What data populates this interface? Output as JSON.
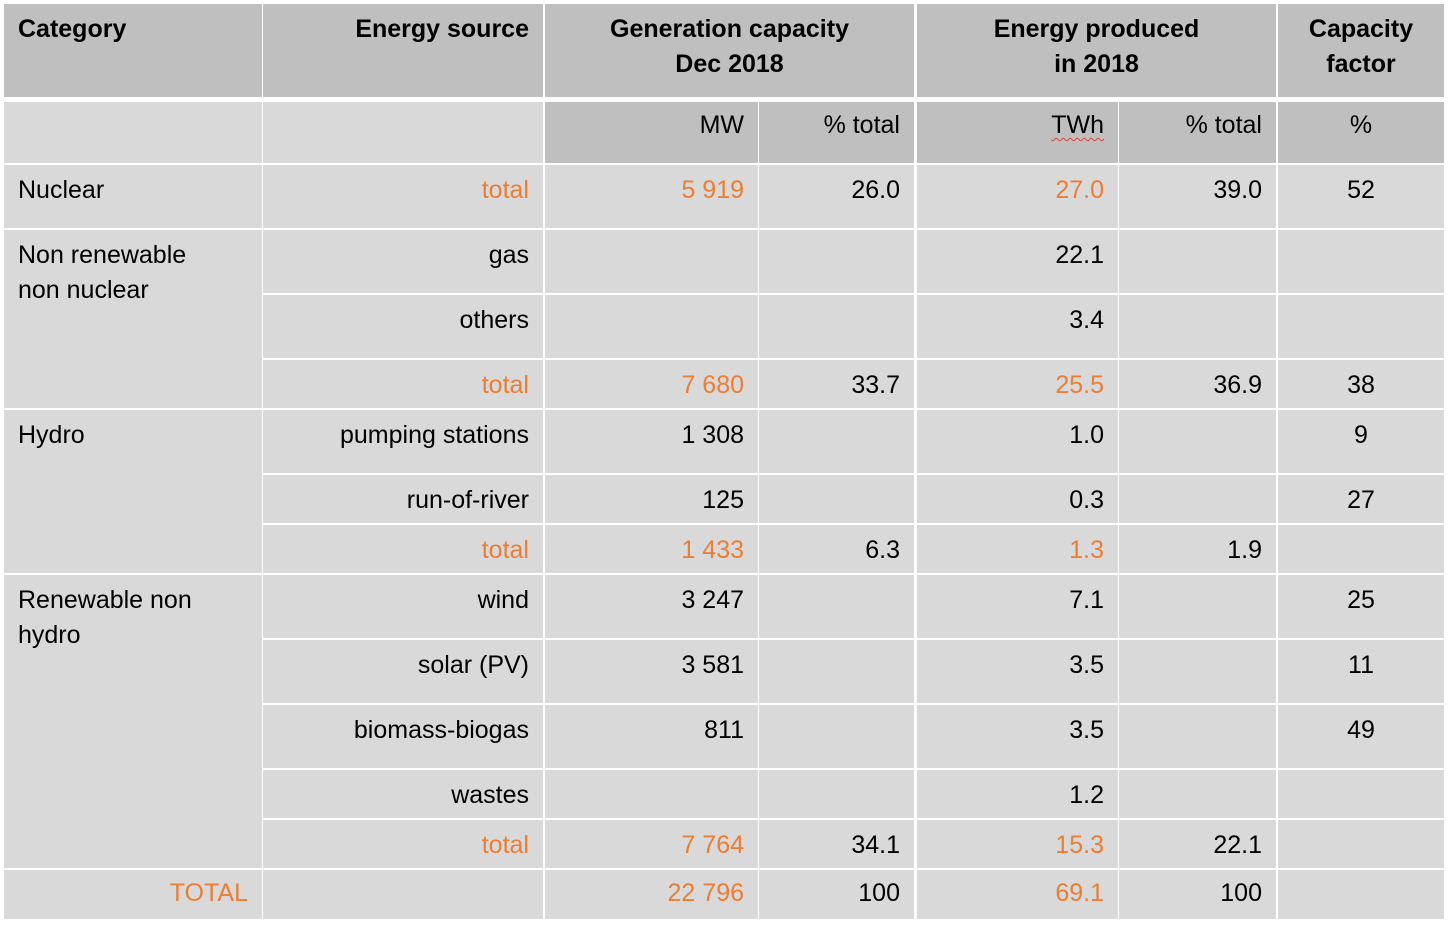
{
  "headers": {
    "category": "Category",
    "energy_source": "Energy source",
    "generation_capacity_line1": "Generation capacity",
    "generation_capacity_line2": "Dec 2018",
    "energy_produced_line1": "Energy produced",
    "energy_produced_line2": "in 2018",
    "capacity_factor_line1": "Capacity",
    "capacity_factor_line2": "factor"
  },
  "units": {
    "mw": "MW",
    "cap_pct": "% total",
    "twh": "TWh",
    "energy_pct": "% total",
    "cf_pct": "%"
  },
  "categories": {
    "nuclear": [
      "Nuclear"
    ],
    "non_renewable": [
      "Non renewable",
      "non nuclear"
    ],
    "hydro": [
      "Hydro"
    ],
    "renewable": [
      "Renewable  non",
      "hydro"
    ]
  },
  "rows": [
    {
      "source": "total",
      "mw": "5 919",
      "cap_pct": "26.0",
      "twh": "27.0",
      "energy_pct": "39.0",
      "cf": "52",
      "is_total": true
    },
    {
      "source": "gas",
      "mw": "",
      "cap_pct": "",
      "twh": "22.1",
      "energy_pct": "",
      "cf": "",
      "is_total": false
    },
    {
      "source": "others",
      "mw": "",
      "cap_pct": "",
      "twh": "3.4",
      "energy_pct": "",
      "cf": "",
      "is_total": false
    },
    {
      "source": "total",
      "mw": "7 680",
      "cap_pct": "33.7",
      "twh": "25.5",
      "energy_pct": "36.9",
      "cf": "38",
      "is_total": true
    },
    {
      "source": "pumping stations",
      "mw": "1 308",
      "cap_pct": "",
      "twh": "1.0",
      "energy_pct": "",
      "cf": "9",
      "is_total": false
    },
    {
      "source": "run-of-river",
      "mw": "125",
      "cap_pct": "",
      "twh": "0.3",
      "energy_pct": "",
      "cf": "27",
      "is_total": false
    },
    {
      "source": "total",
      "mw": "1 433",
      "cap_pct": "6.3",
      "twh": "1.3",
      "energy_pct": "1.9",
      "cf": "",
      "is_total": true
    },
    {
      "source": "wind",
      "mw": "3 247",
      "cap_pct": "",
      "twh": "7.1",
      "energy_pct": "",
      "cf": "25",
      "is_total": false
    },
    {
      "source": "solar (PV)",
      "mw": "3 581",
      "cap_pct": "",
      "twh": "3.5",
      "energy_pct": "",
      "cf": "11",
      "is_total": false
    },
    {
      "source": "biomass-biogas",
      "mw": "811",
      "cap_pct": "",
      "twh": "3.5",
      "energy_pct": "",
      "cf": "49",
      "is_total": false
    },
    {
      "source": "wastes",
      "mw": "",
      "cap_pct": "",
      "twh": "1.2",
      "energy_pct": "",
      "cf": "",
      "is_total": false
    },
    {
      "source": "total",
      "mw": "7 764",
      "cap_pct": "34.1",
      "twh": "15.3",
      "energy_pct": "22.1",
      "cf": "",
      "is_total": true
    }
  ],
  "grand_total": {
    "label": "TOTAL",
    "mw": "22 796",
    "cap_pct": "100",
    "twh": "69.1",
    "energy_pct": "100",
    "cf": ""
  },
  "colors": {
    "header_bg": "#bfbfbf",
    "body_bg": "#d9d9d9",
    "total_text": "#ed7d31",
    "grid_lines": "#ffffff"
  }
}
